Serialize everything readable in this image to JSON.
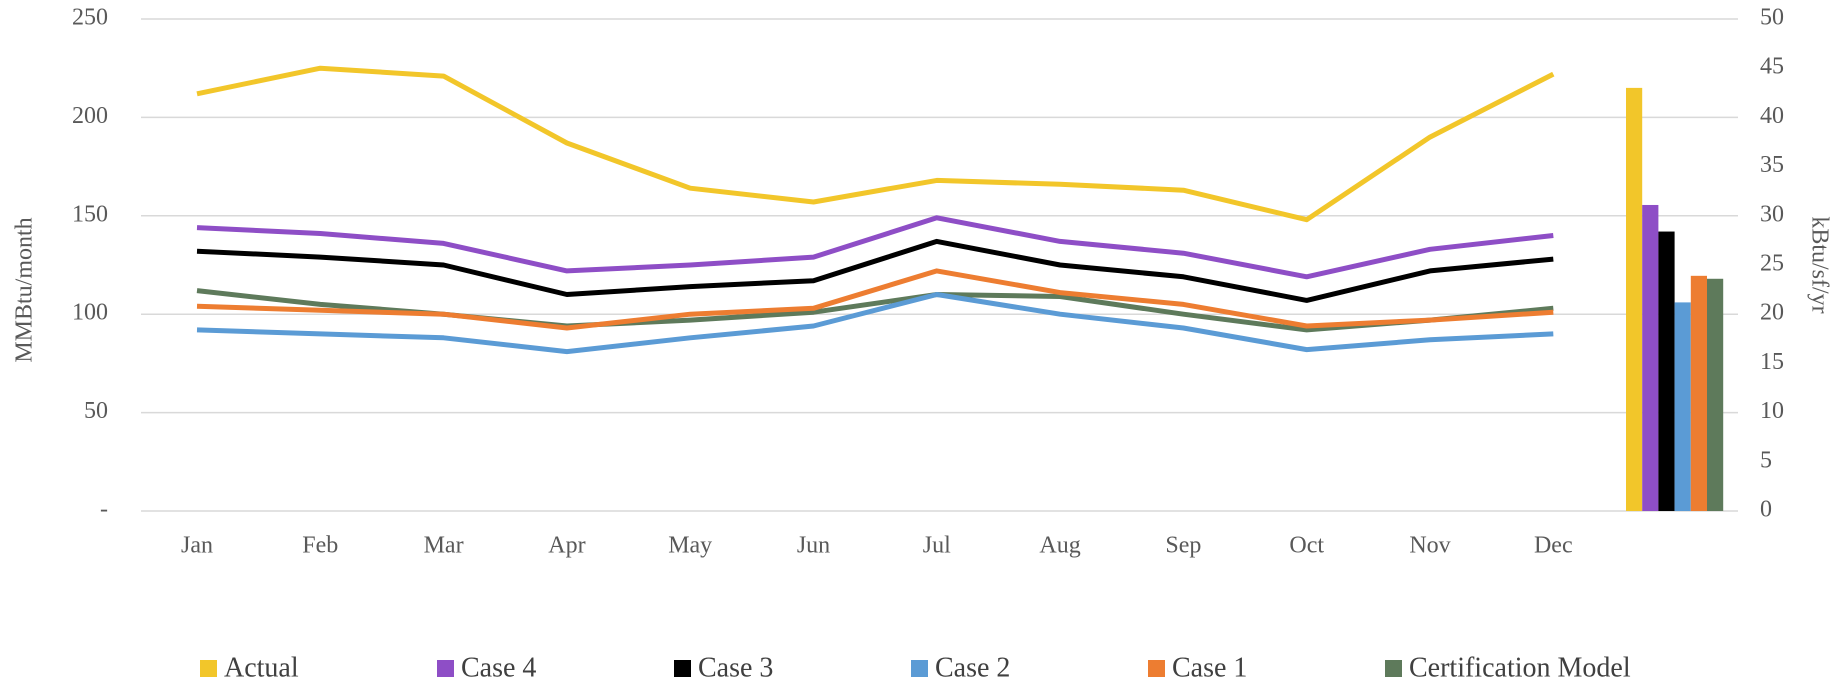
{
  "chart_data": {
    "type": "line",
    "ylabel": "MMBtu/month",
    "y2label": "kBtu/sf/yr",
    "categories": [
      "Jan",
      "Feb",
      "Mar",
      "Apr",
      "May",
      "Jun",
      "Jul",
      "Aug",
      "Sep",
      "Oct",
      "Nov",
      "Dec"
    ],
    "ylim": [
      0,
      250
    ],
    "yticks": [
      {
        "value": 0,
        "label": "-"
      },
      50,
      100,
      150,
      200,
      250
    ],
    "y2lim": [
      0,
      50
    ],
    "y2ticks": [
      0,
      5,
      10,
      15,
      20,
      25,
      30,
      35,
      40,
      45,
      50
    ],
    "grid": true,
    "series": [
      {
        "name": "Actual",
        "color": "#f2c62a",
        "values": [
          212,
          225,
          221,
          187,
          164,
          157,
          168,
          166,
          163,
          148,
          190,
          222
        ],
        "annual": 43.0
      },
      {
        "name": "Case 4",
        "color": "#8e4ec6",
        "values": [
          144,
          141,
          136,
          122,
          125,
          129,
          149,
          137,
          131,
          119,
          133,
          140
        ],
        "annual": 31.1
      },
      {
        "name": "Case 3",
        "color": "#000000",
        "values": [
          132,
          129,
          125,
          110,
          114,
          117,
          137,
          125,
          119,
          107,
          122,
          128
        ],
        "annual": 28.4
      },
      {
        "name": "Case 2",
        "color": "#5b9bd5",
        "values": [
          92,
          90,
          88,
          81,
          88,
          94,
          110,
          100,
          93,
          82,
          87,
          90
        ],
        "annual": 21.2
      },
      {
        "name": "Case 1",
        "color": "#ed7d31",
        "values": [
          104,
          102,
          100,
          93,
          100,
          103,
          122,
          111,
          105,
          94,
          97,
          101
        ],
        "annual": 23.9
      },
      {
        "name": "Certification Model",
        "color": "#5e7a5b",
        "values": [
          112,
          105,
          100,
          94,
          97,
          101,
          110,
          109,
          100,
          92,
          97,
          103
        ],
        "annual": 23.6
      }
    ]
  }
}
